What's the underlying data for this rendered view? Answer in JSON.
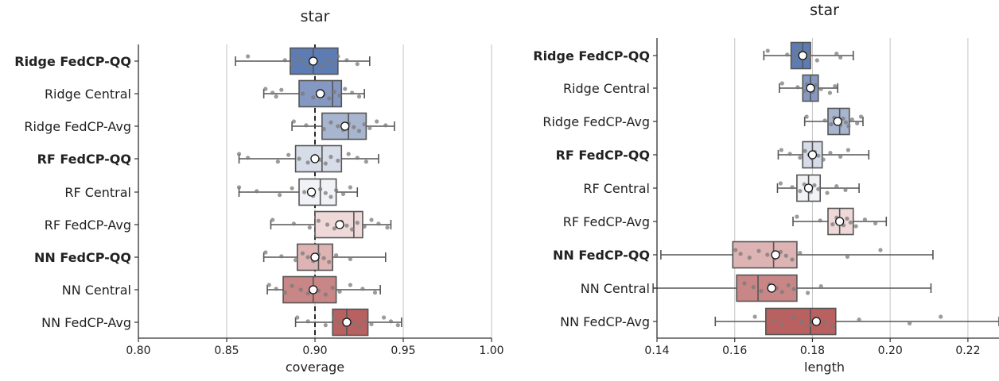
{
  "chart_data": [
    {
      "type": "boxplot",
      "title": "star",
      "xlabel": "coverage",
      "ylabel": "",
      "xlim": [
        0.8,
        1.0
      ],
      "xticks": [
        "0.80",
        "0.85",
        "0.90",
        "0.95",
        "1.00"
      ],
      "xtick_values": [
        0.8,
        0.85,
        0.9,
        0.95,
        1.0
      ],
      "reference_line": 0.9,
      "grid": "vertical",
      "categories": [
        "Ridge FedCP-QQ",
        "Ridge Central",
        "Ridge FedCP-Avg",
        "RF FedCP-QQ",
        "RF Central",
        "RF FedCP-Avg",
        "NN FedCP-QQ",
        "NN Central",
        "NN FedCP-Avg"
      ],
      "bold_categories": [
        "Ridge FedCP-QQ",
        "RF FedCP-QQ",
        "NN FedCP-QQ"
      ],
      "boxes": [
        {
          "whislo": 0.855,
          "q1": 0.886,
          "med": 0.899,
          "q3": 0.913,
          "whishi": 0.931,
          "mean": 0.899,
          "color": "#5d7cb3",
          "points": [
            0.862,
            0.883,
            0.887,
            0.89,
            0.893,
            0.896,
            0.899,
            0.901,
            0.904,
            0.907,
            0.91,
            0.913,
            0.918,
            0.924
          ]
        },
        {
          "whislo": 0.871,
          "q1": 0.891,
          "med": 0.91,
          "q3": 0.915,
          "whishi": 0.928,
          "mean": 0.903,
          "color": "#8498c1",
          "points": [
            0.872,
            0.876,
            0.878,
            0.881,
            0.893,
            0.899,
            0.903,
            0.905,
            0.908,
            0.911,
            0.914,
            0.917,
            0.921,
            0.925
          ]
        },
        {
          "whislo": 0.887,
          "q1": 0.904,
          "med": 0.919,
          "q3": 0.929,
          "whishi": 0.945,
          "mean": 0.917,
          "color": "#a8b5cf",
          "points": [
            0.888,
            0.895,
            0.905,
            0.909,
            0.913,
            0.916,
            0.919,
            0.922,
            0.925,
            0.928,
            0.931,
            0.935,
            0.94
          ]
        },
        {
          "whislo": 0.857,
          "q1": 0.889,
          "med": 0.904,
          "q3": 0.915,
          "whishi": 0.936,
          "mean": 0.9,
          "color": "#d6dce8",
          "points": [
            0.857,
            0.862,
            0.879,
            0.885,
            0.891,
            0.896,
            0.9,
            0.903,
            0.906,
            0.909,
            0.913,
            0.919,
            0.924,
            0.929
          ]
        },
        {
          "whislo": 0.857,
          "q1": 0.891,
          "med": 0.903,
          "q3": 0.912,
          "whishi": 0.924,
          "mean": 0.898,
          "color": "#f1f2f5",
          "points": [
            0.857,
            0.867,
            0.88,
            0.887,
            0.894,
            0.899,
            0.903,
            0.906,
            0.909,
            0.912,
            0.916,
            0.92
          ]
        },
        {
          "whislo": 0.875,
          "q1": 0.9,
          "med": 0.922,
          "q3": 0.927,
          "whishi": 0.943,
          "mean": 0.914,
          "color": "#eed8d8",
          "points": [
            0.876,
            0.888,
            0.897,
            0.902,
            0.907,
            0.911,
            0.915,
            0.918,
            0.921,
            0.924,
            0.928,
            0.932,
            0.936,
            0.941
          ]
        },
        {
          "whislo": 0.871,
          "q1": 0.89,
          "med": 0.902,
          "q3": 0.91,
          "whishi": 0.94,
          "mean": 0.9,
          "color": "#ddb3b3",
          "points": [
            0.872,
            0.881,
            0.889,
            0.893,
            0.896,
            0.899,
            0.902,
            0.905,
            0.908,
            0.912,
            0.92
          ]
        },
        {
          "whislo": 0.873,
          "q1": 0.882,
          "med": 0.899,
          "q3": 0.912,
          "whishi": 0.937,
          "mean": 0.899,
          "color": "#c88686",
          "points": [
            0.874,
            0.878,
            0.883,
            0.887,
            0.892,
            0.896,
            0.899,
            0.902,
            0.906,
            0.91,
            0.914,
            0.92,
            0.927,
            0.934
          ]
        },
        {
          "whislo": 0.889,
          "q1": 0.91,
          "med": 0.918,
          "q3": 0.93,
          "whishi": 0.949,
          "mean": 0.918,
          "color": "#b96060",
          "points": [
            0.89,
            0.896,
            0.906,
            0.911,
            0.914,
            0.917,
            0.919,
            0.922,
            0.925,
            0.928,
            0.932,
            0.939,
            0.943,
            0.947
          ]
        }
      ]
    },
    {
      "type": "boxplot",
      "title": "star",
      "xlabel": "length",
      "ylabel": "",
      "xlim": [
        0.14,
        0.228
      ],
      "xticks": [
        "0.14",
        "0.16",
        "0.18",
        "0.20",
        "0.22"
      ],
      "xtick_values": [
        0.14,
        0.16,
        0.18,
        0.2,
        0.22
      ],
      "grid": "vertical",
      "categories": [
        "Ridge FedCP-QQ",
        "Ridge Central",
        "Ridge FedCP-Avg",
        "RF FedCP-QQ",
        "RF Central",
        "RF FedCP-Avg",
        "NN FedCP-QQ",
        "NN Central",
        "NN FedCP-Avg"
      ],
      "bold_categories": [
        "Ridge FedCP-QQ",
        "RF FedCP-QQ",
        "NN FedCP-QQ"
      ],
      "boxes": [
        {
          "whislo": 0.1675,
          "q1": 0.1745,
          "med": 0.1775,
          "q3": 0.1795,
          "whishi": 0.1905,
          "mean": 0.1775,
          "color": "#5d7cb3",
          "points": [
            0.1685,
            0.1735,
            0.1752,
            0.1762,
            0.1771,
            0.1779,
            0.1786,
            0.1792,
            0.1812,
            0.1862,
            0.1872
          ]
        },
        {
          "whislo": 0.1715,
          "q1": 0.1775,
          "med": 0.1795,
          "q3": 0.1815,
          "whishi": 0.1865,
          "mean": 0.1795,
          "color": "#8498c1",
          "points": [
            0.1722,
            0.1762,
            0.1778,
            0.1786,
            0.1794,
            0.1801,
            0.1808,
            0.1822,
            0.1845,
            0.1858
          ]
        },
        {
          "whislo": 0.178,
          "q1": 0.184,
          "med": 0.187,
          "q3": 0.1895,
          "whishi": 0.193,
          "mean": 0.1865,
          "color": "#a8b5cf",
          "points": [
            0.1785,
            0.1832,
            0.1848,
            0.1856,
            0.1864,
            0.1872,
            0.1879,
            0.1886,
            0.1893,
            0.1902,
            0.1915,
            0.1925
          ]
        },
        {
          "whislo": 0.1712,
          "q1": 0.1775,
          "med": 0.18,
          "q3": 0.1825,
          "whishi": 0.1945,
          "mean": 0.18,
          "color": "#d6dce8",
          "points": [
            0.172,
            0.1742,
            0.1768,
            0.1781,
            0.1791,
            0.1799,
            0.1806,
            0.1815,
            0.1828,
            0.1846,
            0.1872,
            0.1892
          ]
        },
        {
          "whislo": 0.171,
          "q1": 0.176,
          "med": 0.179,
          "q3": 0.182,
          "whishi": 0.192,
          "mean": 0.179,
          "color": "#f1f2f5",
          "points": [
            0.1718,
            0.1748,
            0.1768,
            0.1779,
            0.1788,
            0.1796,
            0.1805,
            0.1815,
            0.1838,
            0.1862,
            0.1885
          ]
        },
        {
          "whislo": 0.175,
          "q1": 0.184,
          "med": 0.187,
          "q3": 0.1905,
          "whishi": 0.199,
          "mean": 0.187,
          "color": "#eed8d8",
          "points": [
            0.176,
            0.182,
            0.1852,
            0.1862,
            0.1872,
            0.188,
            0.1889,
            0.1898,
            0.1912,
            0.1935,
            0.1962
          ]
        },
        {
          "whislo": 0.141,
          "q1": 0.1595,
          "med": 0.17,
          "q3": 0.176,
          "whishi": 0.211,
          "mean": 0.1705,
          "color": "#ddb3b3",
          "points": [
            0.1602,
            0.1615,
            0.1638,
            0.1662,
            0.1684,
            0.1702,
            0.1718,
            0.1732,
            0.1748,
            0.1768,
            0.189,
            0.1975
          ]
        },
        {
          "whislo": 0.139,
          "q1": 0.1605,
          "med": 0.166,
          "q3": 0.176,
          "whishi": 0.2105,
          "mean": 0.1695,
          "color": "#c88686",
          "points": [
            0.1625,
            0.1648,
            0.1668,
            0.169,
            0.1708,
            0.1722,
            0.1738,
            0.1752,
            0.1788,
            0.1822
          ]
        },
        {
          "whislo": 0.155,
          "q1": 0.168,
          "med": 0.1795,
          "q3": 0.186,
          "whishi": 0.228,
          "mean": 0.181,
          "color": "#b96060",
          "points": [
            0.1652,
            0.1702,
            0.1722,
            0.1752,
            0.1772,
            0.1792,
            0.1812,
            0.1832,
            0.1852,
            0.192,
            0.205,
            0.213
          ]
        }
      ]
    }
  ]
}
